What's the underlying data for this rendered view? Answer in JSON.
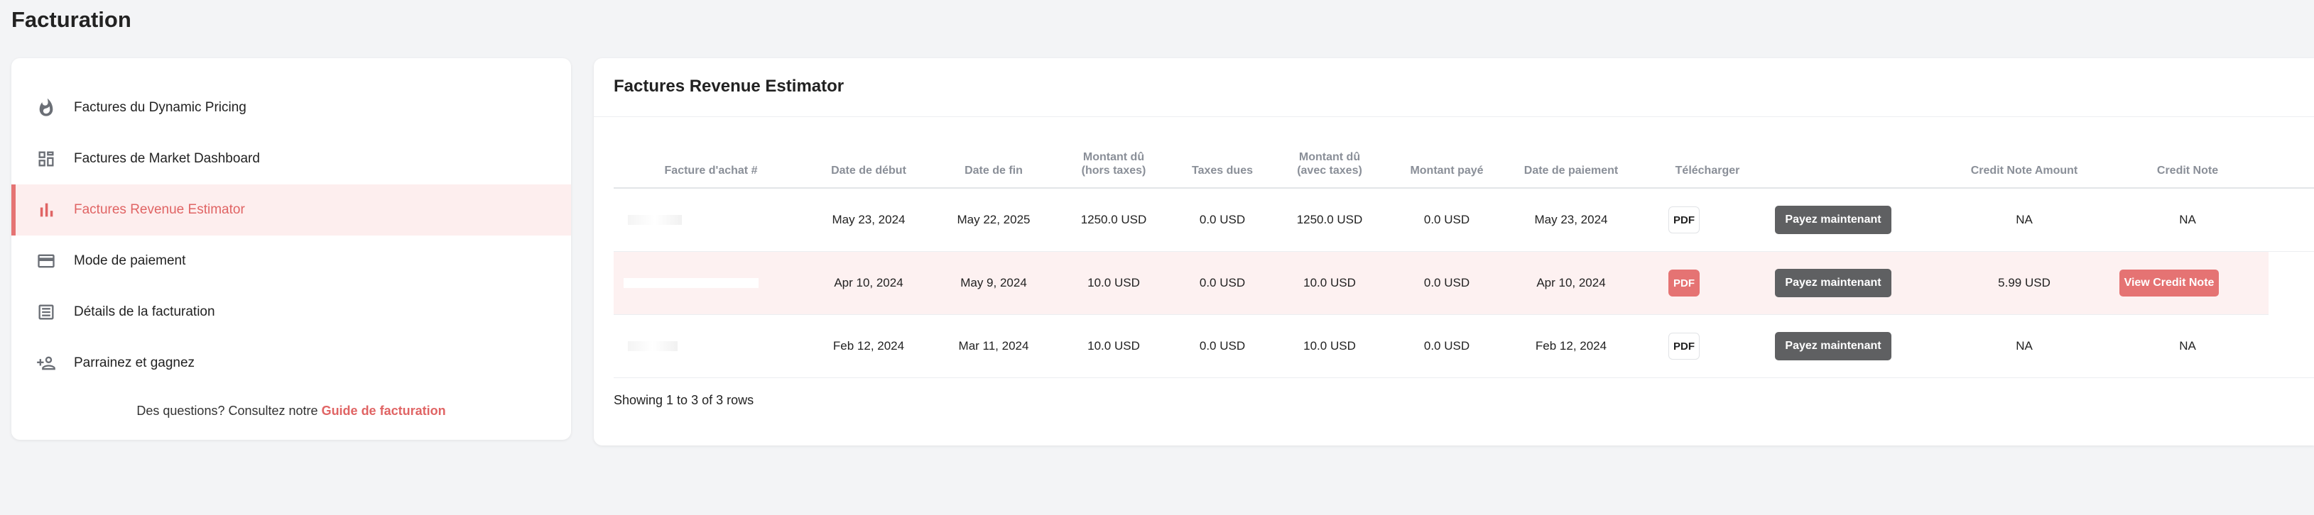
{
  "page": {
    "title": "Facturation"
  },
  "sidebar": {
    "items": [
      {
        "label": "Factures du Dynamic Pricing",
        "icon": "flame-icon"
      },
      {
        "label": "Factures de Market Dashboard",
        "icon": "dashboard-grid-icon"
      },
      {
        "label": "Factures Revenue Estimator",
        "icon": "bar-chart-icon",
        "active": true
      },
      {
        "label": "Mode de paiement",
        "icon": "credit-card-icon"
      },
      {
        "label": "Détails de la facturation",
        "icon": "document-list-icon"
      },
      {
        "label": "Parrainez et gagnez",
        "icon": "add-person-icon"
      }
    ],
    "footer_text": "Des questions? Consultez notre",
    "footer_link": "Guide de facturation"
  },
  "main": {
    "title": "Factures Revenue Estimator",
    "columns": {
      "invoice": "Facture d'achat #",
      "start": "Date de début",
      "end": "Date de fin",
      "amount_ht_1": "Montant dû",
      "amount_ht_2": "(hors taxes)",
      "taxes": "Taxes dues",
      "amount_ttc_1": "Montant dû",
      "amount_ttc_2": "(avec taxes)",
      "paid": "Montant payé",
      "pay_date": "Date de paiement",
      "download": "Télécharger",
      "credit_amount": "Credit Note Amount",
      "credit_note": "Credit Note"
    },
    "rows": [
      {
        "start": "May 23, 2024",
        "end": "May 22, 2025",
        "amount_ht": "1250.0 USD",
        "taxes": "0.0 USD",
        "amount_ttc": "1250.0 USD",
        "paid": "0.0 USD",
        "pay_date": "May 23, 2024",
        "pdf": "PDF",
        "pay": "Payez maintenant",
        "credit_amount": "NA",
        "credit_note": "NA"
      },
      {
        "start": "Apr 10, 2024",
        "end": "May 9, 2024",
        "amount_ht": "10.0 USD",
        "taxes": "0.0 USD",
        "amount_ttc": "10.0 USD",
        "paid": "0.0 USD",
        "pay_date": "Apr 10, 2024",
        "pdf": "PDF",
        "pay": "Payez maintenant",
        "credit_amount": "5.99 USD",
        "credit_note": "View Credit Note"
      },
      {
        "start": "Feb 12, 2024",
        "end": "Mar 11, 2024",
        "amount_ht": "10.0 USD",
        "taxes": "0.0 USD",
        "amount_ttc": "10.0 USD",
        "paid": "0.0 USD",
        "pay_date": "Feb 12, 2024",
        "pdf": "PDF",
        "pay": "Payez maintenant",
        "credit_amount": "NA",
        "credit_note": "NA"
      }
    ],
    "showing": "Showing 1 to 3 of 3 rows"
  },
  "colors": {
    "accent": "#e57373",
    "active_bg": "#fdeeee",
    "pay_button": "#5f6062",
    "page_bg": "#f3f4f6"
  }
}
